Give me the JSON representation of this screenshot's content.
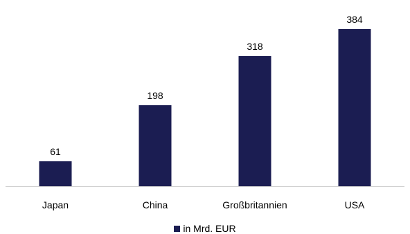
{
  "chart_data": {
    "type": "bar",
    "categories": [
      "Japan",
      "China",
      "Großbritannien",
      "USA"
    ],
    "series": [
      {
        "name": "in Mrd. EUR",
        "values": [
          61,
          198,
          318,
          384
        ]
      }
    ],
    "data_labels": [
      "61",
      "198",
      "318",
      "384"
    ],
    "ylim": [
      0,
      384
    ],
    "grid": false,
    "legend": "bottom-center",
    "bar_color": "#1b1d52",
    "axis_color": "#d0d0d0"
  }
}
